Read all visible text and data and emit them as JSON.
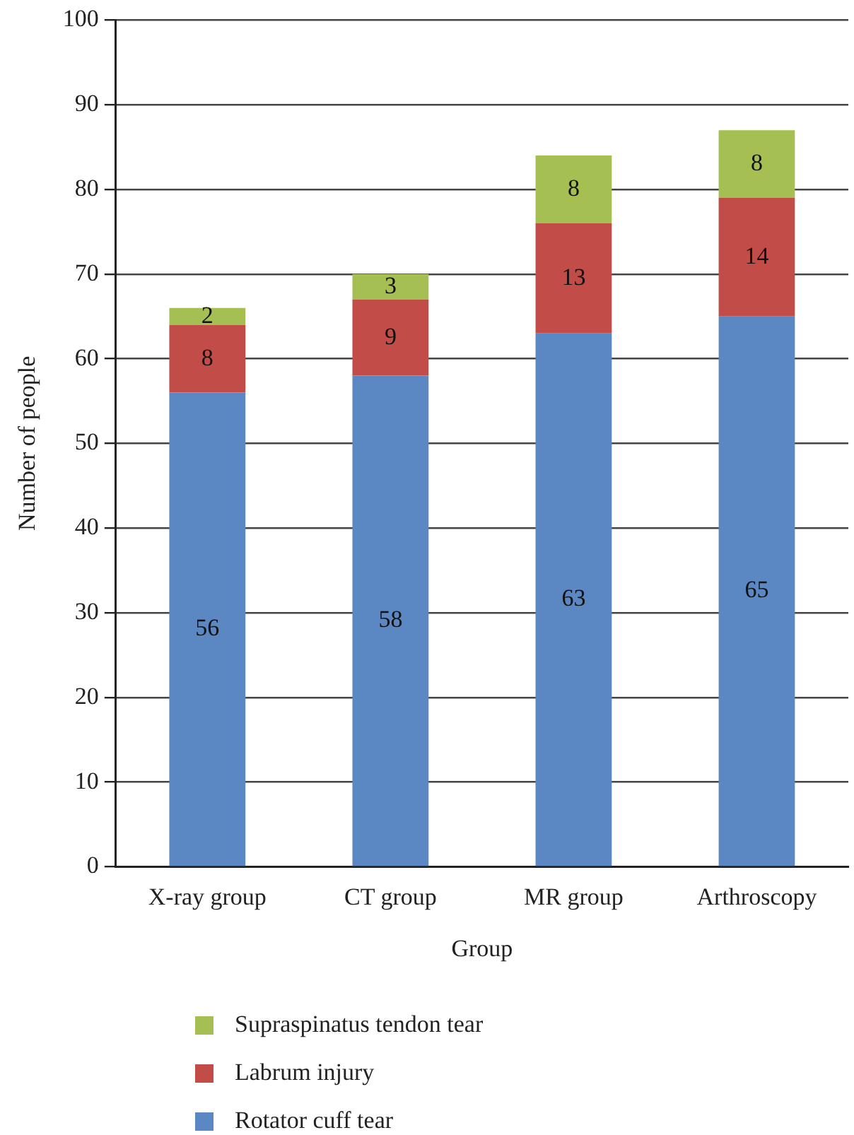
{
  "chart_data": {
    "type": "bar",
    "stacked": true,
    "xlabel": "Group",
    "ylabel": "Number of people",
    "categories": [
      "X-ray group",
      "CT group",
      "MR group",
      "Arthroscopy"
    ],
    "series": [
      {
        "name": "Rotator cuff tear",
        "color": "#5b87c3",
        "values": [
          56,
          58,
          63,
          65
        ]
      },
      {
        "name": "Labrum injury",
        "color": "#c24d48",
        "values": [
          8,
          9,
          13,
          14
        ]
      },
      {
        "name": "Supraspinatus tendon tear",
        "color": "#a6bf52",
        "values": [
          2,
          3,
          8,
          8
        ]
      }
    ],
    "ylim": [
      0,
      100
    ],
    "yticks": [
      0,
      10,
      20,
      30,
      40,
      50,
      60,
      70,
      80,
      90,
      100
    ],
    "grid": "y",
    "data_labels": true,
    "legend": "bottom"
  }
}
